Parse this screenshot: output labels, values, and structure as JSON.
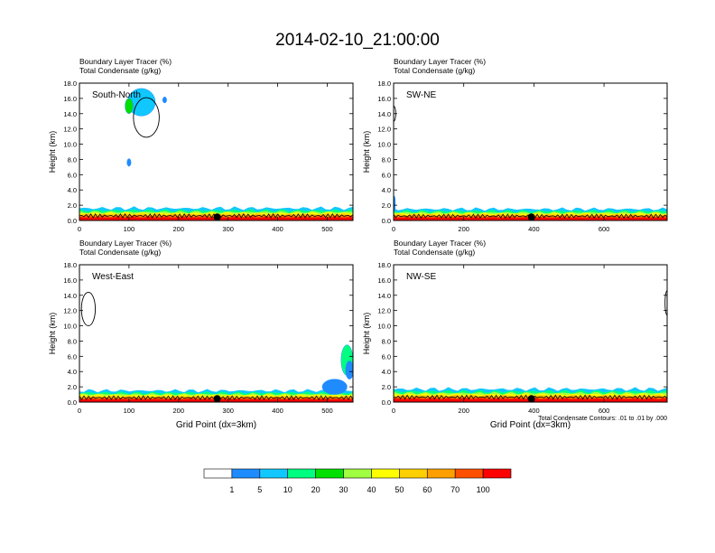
{
  "title": "2014-02-10_21:00:00",
  "colors": {
    "levels": [
      "#ffffff",
      "#1e8cff",
      "#10c8ff",
      "#00ff80",
      "#00e000",
      "#a0ff40",
      "#ffff00",
      "#ffd000",
      "#ffa000",
      "#ff5000",
      "#ff0000"
    ],
    "outline": "#000000"
  },
  "colorbar": {
    "labels": [
      "1",
      "5",
      "10",
      "20",
      "30",
      "40",
      "50",
      "60",
      "70",
      "100"
    ]
  },
  "footnote": "Total Condensate Contours: .01 to .01 by .000",
  "chart_data": [
    {
      "type": "heatmap",
      "panel_label": "South-North",
      "header_line1": "Boundary Layer Tracer    (%)",
      "header_line2": "Total Condensate    (g/kg)",
      "ylabel": "Height (km)",
      "xlabel": "",
      "xlim": [
        0,
        552
      ],
      "ylim": [
        0,
        18
      ],
      "xticks": [
        0,
        100,
        200,
        300,
        400,
        500
      ],
      "yticks": [
        0,
        2,
        4,
        6,
        8,
        10,
        12,
        14,
        16,
        18
      ],
      "ytick_labels": [
        "0.0",
        "2.0",
        "4.0",
        "6.0",
        "8.0",
        "10.0",
        "12.0",
        "14.0",
        "16.0",
        "18.0"
      ],
      "marker_x": 278,
      "tracer_top_km": 1.6,
      "features": [
        {
          "x": 125,
          "y": 15.5,
          "rx": 28,
          "ry": 1.8,
          "level": 2
        },
        {
          "x": 100,
          "y": 15.0,
          "rx": 8,
          "ry": 1.0,
          "level": 4
        },
        {
          "x": 172,
          "y": 15.8,
          "rx": 4,
          "ry": 0.4,
          "level": 1
        },
        {
          "x": 100,
          "y": 7.6,
          "rx": 4,
          "ry": 0.5,
          "level": 1
        }
      ],
      "contours": [
        {
          "x": 135,
          "y": 13.5,
          "rx": 26,
          "ry": 2.6
        }
      ]
    },
    {
      "type": "heatmap",
      "panel_label": "SW-NE",
      "header_line1": "Boundary Layer Tracer    (%)",
      "header_line2": "Total Condensate    (g/kg)",
      "ylabel": "Height (km)",
      "xlabel": "",
      "xlim": [
        0,
        780
      ],
      "ylim": [
        0,
        18
      ],
      "xticks": [
        0,
        200,
        400,
        600
      ],
      "yticks": [
        0,
        2,
        4,
        6,
        8,
        10,
        12,
        14,
        16,
        18
      ],
      "ytick_labels": [
        "0.0",
        "2.0",
        "4.0",
        "6.0",
        "8.0",
        "10.0",
        "12.0",
        "14.0",
        "16.0",
        "18.0"
      ],
      "marker_x": 393,
      "tracer_top_km": 1.5,
      "features": [
        {
          "x": 2,
          "y": 2.2,
          "rx": 3,
          "ry": 1.0,
          "level": 1
        }
      ],
      "contours": [
        {
          "x": 0,
          "y": 14.0,
          "rx": 6,
          "ry": 1.0
        }
      ]
    },
    {
      "type": "heatmap",
      "panel_label": "West-East",
      "header_line1": "Boundary Layer Tracer    (%)",
      "header_line2": "Total Condensate    (g/kg)",
      "ylabel": "Height (km)",
      "xlabel": "Grid Point (dx=3km)",
      "xlim": [
        0,
        552
      ],
      "ylim": [
        0,
        18
      ],
      "xticks": [
        0,
        100,
        200,
        300,
        400,
        500
      ],
      "yticks": [
        0,
        2,
        4,
        6,
        8,
        10,
        12,
        14,
        16,
        18
      ],
      "ytick_labels": [
        "0.0",
        "2.0",
        "4.0",
        "6.0",
        "8.0",
        "10.0",
        "12.0",
        "14.0",
        "16.0",
        "18.0"
      ],
      "marker_x": 278,
      "tracer_top_km": 1.5,
      "features": [
        {
          "x": 540,
          "y": 5.5,
          "rx": 12,
          "ry": 2.0,
          "level": 3
        },
        {
          "x": 545,
          "y": 4.2,
          "rx": 8,
          "ry": 1.2,
          "level": 1
        },
        {
          "x": 515,
          "y": 2.0,
          "rx": 25,
          "ry": 1.0,
          "level": 1
        }
      ],
      "contours": [
        {
          "x": 18,
          "y": 12.2,
          "rx": 14,
          "ry": 2.2
        }
      ]
    },
    {
      "type": "heatmap",
      "panel_label": "NW-SE",
      "header_line1": "Boundary Layer Tracer    (%)",
      "header_line2": "Total Condensate    (g/kg)",
      "ylabel": "Height (km)",
      "xlabel": "Grid Point (dx=3km)",
      "xlim": [
        0,
        780
      ],
      "ylim": [
        0,
        18
      ],
      "xticks": [
        0,
        200,
        400,
        600
      ],
      "yticks": [
        0,
        2,
        4,
        6,
        8,
        10,
        12,
        14,
        16,
        18
      ],
      "ytick_labels": [
        "0.0",
        "2.0",
        "4.0",
        "6.0",
        "8.0",
        "10.0",
        "12.0",
        "14.0",
        "16.0",
        "18.0"
      ],
      "marker_x": 393,
      "tracer_top_km": 1.7,
      "features": [],
      "contours": [
        {
          "x": 780,
          "y": 13.0,
          "rx": 6,
          "ry": 1.6
        }
      ]
    }
  ]
}
